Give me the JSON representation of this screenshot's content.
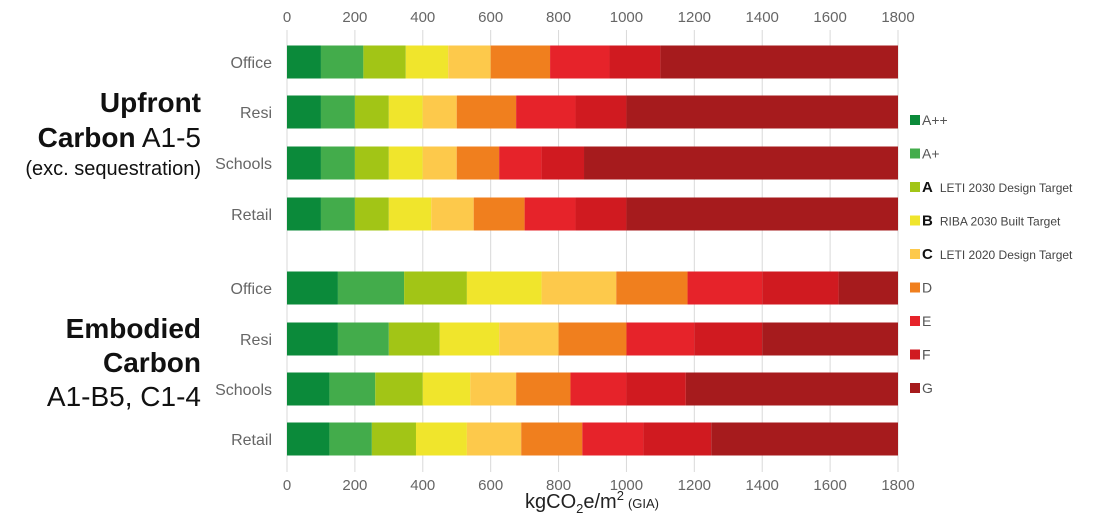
{
  "chart_data": {
    "type": "bar",
    "orientation": "horizontal",
    "stacked": true,
    "xlabel": "kgCO",
    "xlabel_sub": "2",
    "xlabel_rest": "e/m",
    "xlabel_sup": "2",
    "xlabel_unit": "(GIA)",
    "xlim": [
      0,
      1800
    ],
    "x_ticks": [
      "0",
      "200",
      "400",
      "600",
      "800",
      "1000",
      "1200",
      "1400",
      "1600",
      "1800"
    ],
    "grid": "vertical",
    "legend_position": "right",
    "groups": [
      {
        "title_bold_1": "Upfront",
        "title_bold_2": "Carbon",
        "title_rest_2": " A1-5",
        "title_line_3": "(exc. sequestration)",
        "rows": [
          {
            "label": "Office",
            "bounds": [
              100,
              225,
              350,
              475,
              600,
              775,
              950,
              1100,
              1800
            ]
          },
          {
            "label": "Resi",
            "bounds": [
              100,
              200,
              300,
              400,
              500,
              675,
              850,
              1000,
              1800
            ]
          },
          {
            "label": "Schools",
            "bounds": [
              100,
              200,
              300,
              400,
              500,
              625,
              750,
              875,
              1800
            ]
          },
          {
            "label": "Retail",
            "bounds": [
              100,
              200,
              300,
              425,
              550,
              700,
              850,
              1000,
              1800
            ]
          }
        ]
      },
      {
        "title_bold_1": "Embodied",
        "title_bold_2": "Carbon",
        "title_line_3": "A1-B5, C1-4",
        "rows": [
          {
            "label": "Office",
            "bounds": [
              150,
              345,
              530,
              750,
              970,
              1180,
              1400,
              1625,
              1800
            ]
          },
          {
            "label": "Resi",
            "bounds": [
              150,
              300,
              450,
              625,
              800,
              1000,
              1200,
              1400,
              1800
            ]
          },
          {
            "label": "Schools",
            "bounds": [
              125,
              260,
              400,
              540,
              675,
              835,
              1000,
              1175,
              1800
            ]
          },
          {
            "label": "Retail",
            "bounds": [
              125,
              250,
              380,
              530,
              690,
              870,
              1050,
              1250,
              1800
            ]
          }
        ]
      }
    ],
    "legend": [
      {
        "key": "A++",
        "bold": "",
        "text": "",
        "color": "#0b8a3a"
      },
      {
        "key": "A+",
        "bold": "",
        "text": "",
        "color": "#43ac4b"
      },
      {
        "key": "A",
        "bold": "A",
        "text": "LETI 2030 Design Target",
        "color": "#a2c516"
      },
      {
        "key": "B",
        "bold": "B",
        "text": "RIBA 2030 Built Target",
        "color": "#f0e52c"
      },
      {
        "key": "C",
        "bold": "C",
        "text": "LETI 2020 Design Target",
        "color": "#fdc94b"
      },
      {
        "key": "D",
        "bold": "",
        "text": "",
        "color": "#f07f1e"
      },
      {
        "key": "E",
        "bold": "",
        "text": "",
        "color": "#e6232a"
      },
      {
        "key": "F",
        "bold": "",
        "text": "",
        "color": "#d01a20"
      },
      {
        "key": "G",
        "bold": "",
        "text": "",
        "color": "#a61b1d"
      }
    ]
  }
}
